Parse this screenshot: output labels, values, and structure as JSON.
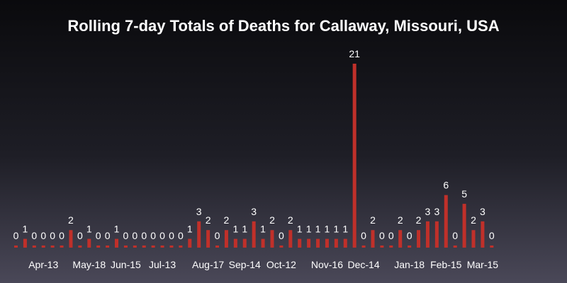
{
  "chart_data": {
    "type": "bar",
    "title": "Rolling 7-day Totals of Deaths for Callaway, Missouri, USA",
    "xlabel": "",
    "ylabel": "",
    "tick_labels": [
      "Apr-13",
      "May-18",
      "Jun-15",
      "Jul-13",
      "Aug-17",
      "Sep-14",
      "Oct-12",
      "Nov-16",
      "Dec-14",
      "Jan-18",
      "Feb-15",
      "Mar-15"
    ],
    "tick_positions": [
      3,
      8,
      12,
      16,
      21,
      25,
      29,
      34,
      38,
      43,
      47,
      51
    ],
    "values": [
      0,
      1,
      0,
      0,
      0,
      0,
      2,
      0,
      1,
      0,
      0,
      1,
      0,
      0,
      0,
      0,
      0,
      0,
      0,
      1,
      3,
      2,
      0,
      2,
      1,
      1,
      3,
      1,
      2,
      0,
      2,
      1,
      1,
      1,
      1,
      1,
      1,
      21,
      0,
      2,
      0,
      0,
      2,
      0,
      2,
      3,
      3,
      6,
      0,
      5,
      2,
      3,
      0
    ],
    "series_color": "#c0302a",
    "ylim": [
      0,
      21
    ],
    "grid": false,
    "legend": "none"
  }
}
